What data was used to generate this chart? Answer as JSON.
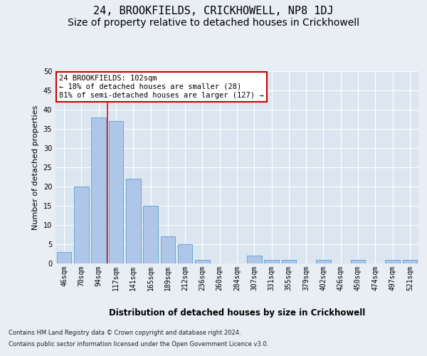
{
  "title": "24, BROOKFIELDS, CRICKHOWELL, NP8 1DJ",
  "subtitle": "Size of property relative to detached houses in Crickhowell",
  "xlabel": "Distribution of detached houses by size in Crickhowell",
  "ylabel": "Number of detached properties",
  "categories": [
    "46sqm",
    "70sqm",
    "94sqm",
    "117sqm",
    "141sqm",
    "165sqm",
    "189sqm",
    "212sqm",
    "236sqm",
    "260sqm",
    "284sqm",
    "307sqm",
    "331sqm",
    "355sqm",
    "379sqm",
    "402sqm",
    "426sqm",
    "450sqm",
    "474sqm",
    "497sqm",
    "521sqm"
  ],
  "values": [
    3,
    20,
    38,
    37,
    22,
    15,
    7,
    5,
    1,
    0,
    0,
    2,
    1,
    1,
    0,
    1,
    0,
    1,
    0,
    1,
    1
  ],
  "bar_color": "#aec6e8",
  "bar_edge_color": "#5a9fd4",
  "ylim": [
    0,
    50
  ],
  "yticks": [
    0,
    5,
    10,
    15,
    20,
    25,
    30,
    35,
    40,
    45,
    50
  ],
  "property_label": "24 BROOKFIELDS: 102sqm",
  "annotation_line1": "← 18% of detached houses are smaller (28)",
  "annotation_line2": "81% of semi-detached houses are larger (127) →",
  "red_line_x": 2.5,
  "annotation_box_color": "#ffffff",
  "annotation_box_edge": "#cc0000",
  "bg_color": "#e8eef4",
  "plot_bg_color": "#dce6f0",
  "footer_line1": "Contains HM Land Registry data © Crown copyright and database right 2024.",
  "footer_line2": "Contains public sector information licensed under the Open Government Licence v3.0.",
  "title_fontsize": 11,
  "subtitle_fontsize": 10,
  "axis_label_fontsize": 8,
  "tick_fontsize": 7,
  "annotation_fontsize": 7.5
}
